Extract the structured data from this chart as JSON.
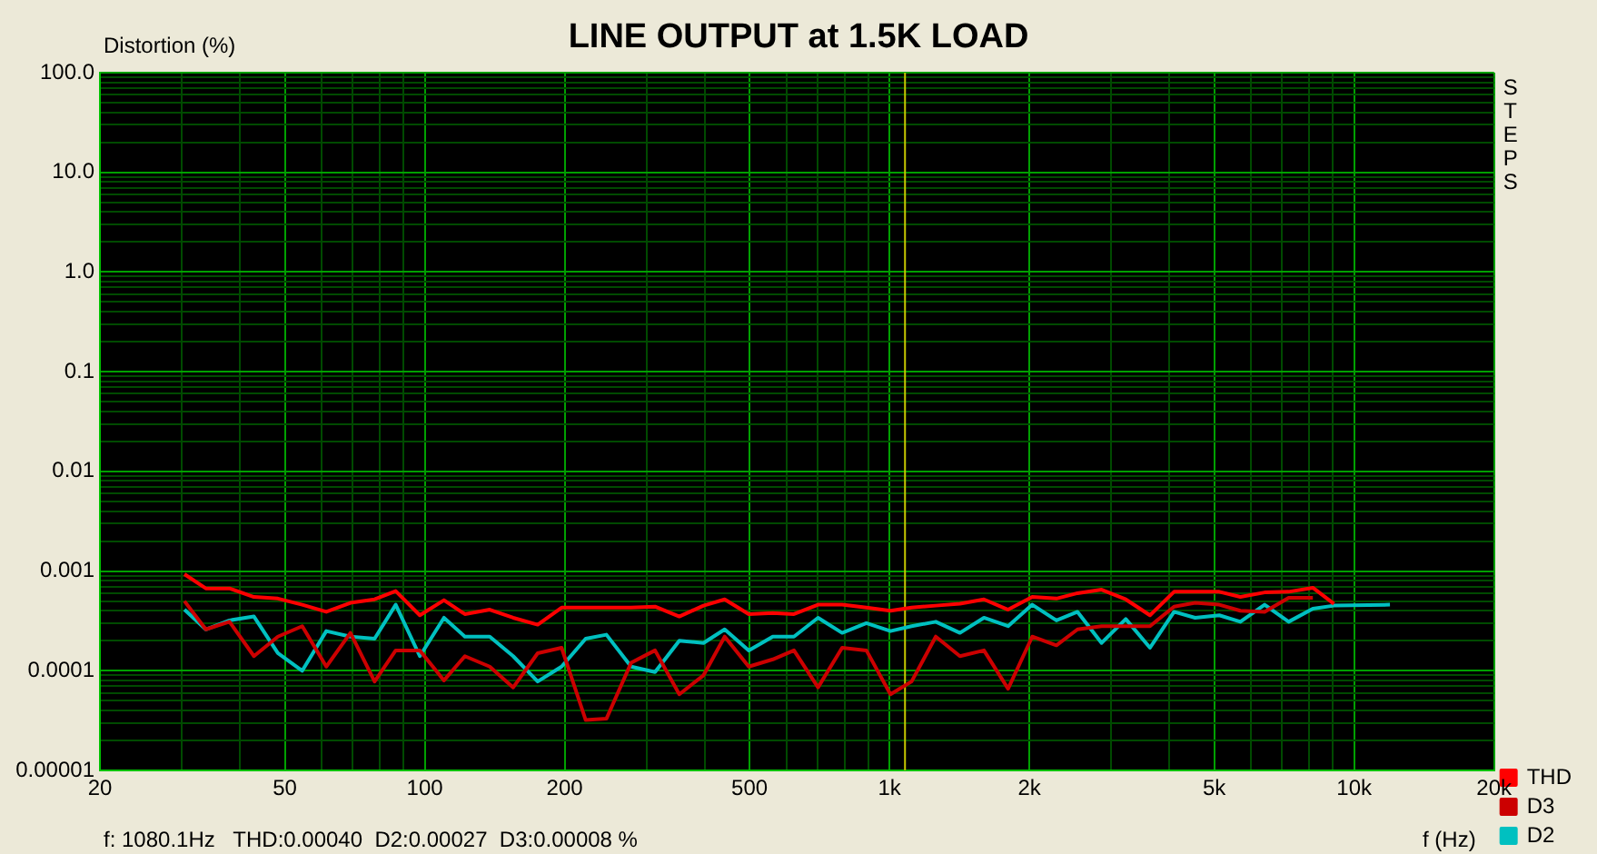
{
  "chart_data": {
    "type": "line",
    "title": "LINE OUTPUT at 1.5K LOAD",
    "xlabel": "f (Hz)",
    "ylabel": "Distortion (%)",
    "annotations": [
      "STEPS",
      "f: 1080.1Hz   THD:0.00040  D2:0.00027  D3:0.00008 %"
    ],
    "x": [
      30.4,
      33.8,
      38.0,
      42.9,
      48.3,
      54.5,
      61.4,
      69.2,
      78.0,
      86.6,
      97.6,
      110,
      122,
      138,
      155,
      175,
      197,
      222,
      246,
      278,
      313,
      353,
      398,
      442,
      498,
      561,
      623,
      702,
      791,
      892,
      1005,
      1116,
      1258,
      1418,
      1597,
      1800,
      2029,
      2287,
      2539,
      2861,
      3225,
      3636,
      4097,
      4548,
      5126,
      5690,
      6416,
      7229,
      8149,
      9048,
      11940
    ],
    "series": [
      {
        "name": "THD",
        "color": "#ff0000",
        "values": [
          0.00093,
          0.00067,
          0.00067,
          0.00055,
          0.00053,
          0.00046,
          0.00039,
          0.00048,
          0.00052,
          0.00063,
          0.00036,
          0.00051,
          0.00037,
          0.00041,
          0.00034,
          0.00029,
          0.00043,
          0.00043,
          0.00043,
          0.00043,
          0.00044,
          0.00035,
          0.00045,
          0.00052,
          0.00037,
          0.00038,
          0.00037,
          0.00046,
          0.00046,
          0.00043,
          0.0004,
          0.00043,
          0.00045,
          0.00047,
          0.00052,
          0.00041,
          0.00055,
          0.00053,
          0.0006,
          0.00065,
          0.00052,
          0.00036,
          0.00062,
          0.00062,
          0.00062,
          0.00055,
          0.00061,
          0.00062,
          0.00068,
          0.00047,
          null
        ]
      },
      {
        "name": "D3",
        "color": "#cc0000",
        "values": [
          0.0005,
          0.00026,
          0.00031,
          0.00014,
          0.00022,
          0.00028,
          0.00011,
          0.00024,
          7.8e-05,
          0.00016,
          0.00016,
          8e-05,
          0.00014,
          0.00011,
          6.8e-05,
          0.00015,
          0.00017,
          3.2e-05,
          3.3e-05,
          0.00012,
          0.00016,
          5.8e-05,
          9e-05,
          0.00022,
          0.00011,
          0.00013,
          0.00016,
          6.8e-05,
          0.00017,
          0.00016,
          5.8e-05,
          7.8e-05,
          0.00022,
          0.00014,
          0.00016,
          6.6e-05,
          0.00022,
          0.00018,
          0.00026,
          0.00028,
          0.00028,
          0.00028,
          0.00044,
          0.00048,
          0.00046,
          0.0004,
          0.00039,
          0.00054,
          0.00054,
          null,
          null
        ]
      },
      {
        "name": "D2",
        "color": "#00c0c0",
        "values": [
          0.00041,
          0.00026,
          0.00032,
          0.00035,
          0.00015,
          0.0001,
          0.00025,
          0.00022,
          0.00021,
          0.00046,
          0.00014,
          0.00034,
          0.00022,
          0.00022,
          0.00014,
          7.8e-05,
          0.00011,
          0.00021,
          0.00023,
          0.00011,
          9.7e-05,
          0.0002,
          0.00019,
          0.00026,
          0.00016,
          0.00022,
          0.00022,
          0.00034,
          0.00024,
          0.0003,
          0.00025,
          0.00028,
          0.00031,
          0.00024,
          0.00034,
          0.00028,
          0.00046,
          0.00032,
          0.00039,
          0.00019,
          0.00033,
          0.00017,
          0.00039,
          0.00034,
          0.00036,
          0.00031,
          0.00046,
          0.00031,
          0.00042,
          0.00045,
          0.00046
        ]
      }
    ],
    "log": "xy",
    "xlim": [
      20,
      20000
    ],
    "ylim": [
      1e-05,
      100
    ],
    "xticks": [
      20,
      {
        "value": 30,
        "label": null
      },
      {
        "value": 40,
        "label": null
      },
      50,
      {
        "value": 60,
        "label": null
      },
      {
        "value": 70,
        "label": null
      },
      {
        "value": 80,
        "label": null
      },
      {
        "value": 90,
        "label": null
      },
      100,
      200,
      {
        "value": 300,
        "label": null
      },
      {
        "value": 400,
        "label": null
      },
      500,
      {
        "value": 600,
        "label": null
      },
      {
        "value": 700,
        "label": null
      },
      {
        "value": 800,
        "label": null
      },
      {
        "value": 900,
        "label": null
      },
      {
        "value": 1000,
        "label": "1k"
      },
      {
        "value": 2000,
        "label": "2k"
      },
      {
        "value": 3000,
        "label": null
      },
      {
        "value": 4000,
        "label": null
      },
      {
        "value": 5000,
        "label": "5k"
      },
      {
        "value": 6000,
        "label": null
      },
      {
        "value": 7000,
        "label": null
      },
      {
        "value": 8000,
        "label": null
      },
      {
        "value": 9000,
        "label": null
      },
      {
        "value": 10000,
        "label": "10k"
      },
      {
        "value": 20000,
        "label": "20k"
      }
    ],
    "yticks": [
      {
        "value": 1e-05,
        "label": "0.00001"
      },
      {
        "value": 2e-05,
        "label": null
      },
      {
        "value": 3e-05,
        "label": null
      },
      {
        "value": 4e-05,
        "label": null
      },
      {
        "value": 5e-05,
        "label": null
      },
      {
        "value": 6e-05,
        "label": null
      },
      {
        "value": 7e-05,
        "label": null
      },
      {
        "value": 8e-05,
        "label": null
      },
      {
        "value": 9e-05,
        "label": null
      },
      0.0001,
      {
        "value": 0.0002,
        "label": null
      },
      {
        "value": 0.0003,
        "label": null
      },
      {
        "value": 0.0004,
        "label": null
      },
      {
        "value": 0.0005,
        "label": null
      },
      {
        "value": 0.0006,
        "label": null
      },
      {
        "value": 0.0007,
        "label": null
      },
      {
        "value": 0.0008,
        "label": null
      },
      {
        "value": 0.0009,
        "label": null
      },
      0.001,
      {
        "value": 0.002,
        "label": null
      },
      {
        "value": 0.003,
        "label": null
      },
      {
        "value": 0.004,
        "label": null
      },
      {
        "value": 0.005,
        "label": null
      },
      {
        "value": 0.006,
        "label": null
      },
      {
        "value": 0.007,
        "label": null
      },
      {
        "value": 0.008,
        "label": null
      },
      {
        "value": 0.009,
        "label": null
      },
      0.01,
      {
        "value": 0.02,
        "label": null
      },
      {
        "value": 0.03,
        "label": null
      },
      {
        "value": 0.04,
        "label": null
      },
      {
        "value": 0.05,
        "label": null
      },
      {
        "value": 0.06,
        "label": null
      },
      {
        "value": 0.07,
        "label": null
      },
      {
        "value": 0.08,
        "label": null
      },
      {
        "value": 0.09,
        "label": null
      },
      0.1,
      {
        "value": 0.2,
        "label": null
      },
      {
        "value": 0.3,
        "label": null
      },
      {
        "value": 0.4,
        "label": null
      },
      {
        "value": 0.5,
        "label": null
      },
      {
        "value": 0.6,
        "label": null
      },
      {
        "value": 0.7,
        "label": null
      },
      {
        "value": 0.8,
        "label": null
      },
      {
        "value": 0.9,
        "label": null
      },
      {
        "value": 1,
        "label": "1.0"
      },
      {
        "value": 2,
        "label": null
      },
      {
        "value": 3,
        "label": null
      },
      {
        "value": 4,
        "label": null
      },
      {
        "value": 5,
        "label": null
      },
      {
        "value": 6,
        "label": null
      },
      {
        "value": 7,
        "label": null
      },
      {
        "value": 8,
        "label": null
      },
      {
        "value": 9,
        "label": null
      },
      {
        "value": 10,
        "label": "10.0"
      },
      {
        "value": 20,
        "label": null
      },
      {
        "value": 30,
        "label": null
      },
      {
        "value": 40,
        "label": null
      },
      {
        "value": 50,
        "label": null
      },
      {
        "value": 60,
        "label": null
      },
      {
        "value": 70,
        "label": null
      },
      {
        "value": 80,
        "label": null
      },
      {
        "value": 90,
        "label": null
      },
      {
        "value": 100,
        "label": "100.0"
      }
    ],
    "grid": true,
    "legend": "bottom right",
    "marker": "none",
    "line_style": "solid",
    "ref_lines": [
      {
        "axis": "x",
        "value": 1080.1,
        "color": "#c8c800"
      }
    ]
  }
}
